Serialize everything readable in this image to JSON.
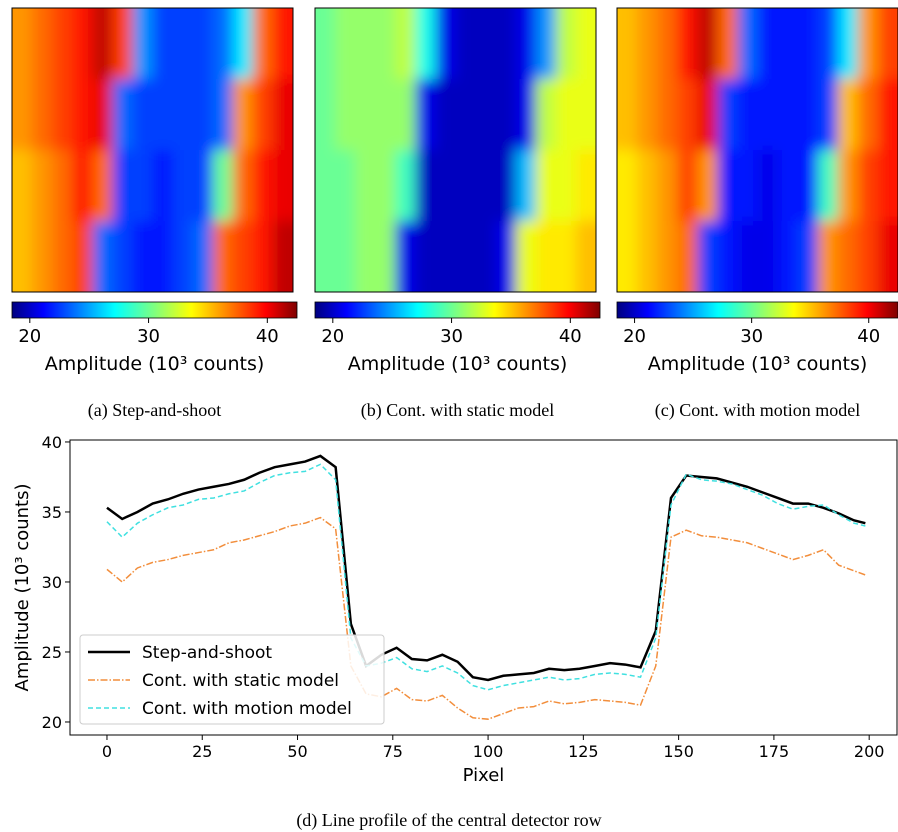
{
  "chart_data": [
    {
      "type": "heatmap",
      "caption": "(a) Step-and-shoot",
      "colorbar_label": "Amplitude (10³ counts)",
      "clim": [
        18.5,
        42.5
      ],
      "cticks": [
        20,
        30,
        40
      ],
      "values": [
        [
          36,
          37,
          38,
          39,
          41,
          38,
          25,
          23,
          23,
          23,
          24,
          27,
          37,
          39
        ],
        [
          36,
          37,
          38,
          39,
          40,
          24,
          23,
          23,
          23,
          23,
          24,
          36,
          38,
          40
        ],
        [
          35,
          36,
          37,
          39,
          37,
          23,
          23,
          22,
          23,
          23,
          30,
          37,
          39,
          40
        ],
        [
          35,
          36,
          37,
          38,
          24,
          23,
          22,
          22,
          23,
          24,
          37,
          38,
          39,
          41
        ]
      ]
    },
    {
      "type": "heatmap",
      "caption": "(b) Cont. with static model",
      "colorbar_label": "Amplitude (10³ counts)",
      "clim": [
        18.5,
        42.5
      ],
      "cticks": [
        20,
        30,
        40
      ],
      "values": [
        [
          30,
          31,
          31,
          31,
          32,
          28,
          21,
          20,
          20,
          20,
          21,
          25,
          32,
          33
        ],
        [
          30,
          31,
          31,
          31,
          31,
          21,
          20,
          20,
          20,
          20,
          21,
          32,
          33,
          33
        ],
        [
          30,
          30,
          31,
          31,
          29,
          20,
          20,
          20,
          20,
          20,
          26,
          33,
          33,
          34
        ],
        [
          30,
          30,
          31,
          31,
          21,
          20,
          20,
          20,
          20,
          21,
          33,
          34,
          34,
          35
        ]
      ]
    },
    {
      "type": "heatmap",
      "caption": "(c) Cont. with motion model",
      "colorbar_label": "Amplitude (10³ counts)",
      "clim": [
        18.5,
        42.5
      ],
      "cticks": [
        20,
        30,
        40
      ],
      "values": [
        [
          35,
          36,
          37,
          39,
          41,
          37,
          24,
          22,
          22,
          22,
          23,
          27,
          36,
          38
        ],
        [
          35,
          36,
          37,
          38,
          40,
          23,
          22,
          22,
          22,
          22,
          23,
          35,
          37,
          39
        ],
        [
          34,
          35,
          36,
          38,
          36,
          22,
          22,
          21,
          22,
          22,
          29,
          36,
          38,
          39
        ],
        [
          34,
          35,
          36,
          37,
          23,
          22,
          21,
          21,
          22,
          23,
          36,
          37,
          38,
          40
        ]
      ]
    },
    {
      "type": "line",
      "caption": "(d) Line profile of the central detector row",
      "xlabel": "Pixel",
      "ylabel": "Amplitude (10³ counts)",
      "xlim": [
        -9.7,
        207.3
      ],
      "xticks": [
        0,
        25,
        50,
        75,
        100,
        125,
        150,
        175,
        200
      ],
      "ylim": [
        19.07,
        40.14
      ],
      "yticks": [
        20,
        25,
        30,
        35,
        40
      ],
      "legend": "lower left",
      "x": [
        0,
        4,
        8,
        12,
        16,
        20,
        24,
        28,
        32,
        36,
        40,
        44,
        48,
        52,
        56,
        60,
        64,
        68,
        72,
        76,
        80,
        84,
        88,
        92,
        96,
        100,
        104,
        108,
        112,
        116,
        120,
        124,
        128,
        132,
        136,
        140,
        144,
        148,
        152,
        156,
        160,
        164,
        168,
        172,
        176,
        180,
        184,
        188,
        192,
        196,
        199
      ],
      "series": [
        {
          "name": "Step-and-shoot",
          "color": "#000000",
          "style": "solid",
          "values": [
            35.3,
            34.5,
            35,
            35.6,
            35.9,
            36.3,
            36.6,
            36.8,
            37,
            37.3,
            37.8,
            38.2,
            38.4,
            38.6,
            39,
            38.2,
            27,
            24,
            24.8,
            25.3,
            24.5,
            24.4,
            24.8,
            24.3,
            23.2,
            23,
            23.3,
            23.4,
            23.5,
            23.8,
            23.7,
            23.8,
            24,
            24.2,
            24.1,
            23.9,
            26.5,
            36,
            37.6,
            37.5,
            37.4,
            37.1,
            36.8,
            36.4,
            36,
            35.6,
            35.6,
            35.3,
            34.9,
            34.4,
            34.2
          ]
        },
        {
          "name": "Cont. with static model",
          "color": "#f28e3c",
          "style": "dashdot",
          "values": [
            30.9,
            30,
            31,
            31.4,
            31.6,
            31.9,
            32.1,
            32.3,
            32.8,
            33,
            33.3,
            33.6,
            34,
            34.2,
            34.6,
            33.8,
            24,
            22,
            21.8,
            22.4,
            21.6,
            21.5,
            21.9,
            21,
            20.3,
            20.2,
            20.6,
            21,
            21.1,
            21.5,
            21.3,
            21.4,
            21.6,
            21.5,
            21.4,
            21.2,
            24,
            33.2,
            33.7,
            33.3,
            33.2,
            33,
            32.8,
            32.4,
            32,
            31.6,
            31.9,
            32.3,
            31.2,
            30.8,
            30.5
          ]
        },
        {
          "name": "Cont. with motion model",
          "color": "#40e0e0",
          "style": "dashed",
          "values": [
            34.3,
            33.2,
            34.2,
            34.8,
            35.3,
            35.5,
            35.9,
            36,
            36.3,
            36.5,
            37.1,
            37.6,
            37.8,
            37.9,
            38.4,
            37.3,
            26,
            24,
            24.2,
            24.6,
            23.8,
            23.6,
            24,
            23.5,
            22.6,
            22.3,
            22.6,
            22.8,
            23,
            23.2,
            23,
            23.1,
            23.4,
            23.5,
            23.4,
            23.2,
            26,
            35.5,
            37.7,
            37.3,
            37.2,
            37,
            36.6,
            36.2,
            35.6,
            35.2,
            35.4,
            35.5,
            34.8,
            34.2,
            34
          ]
        }
      ]
    }
  ]
}
